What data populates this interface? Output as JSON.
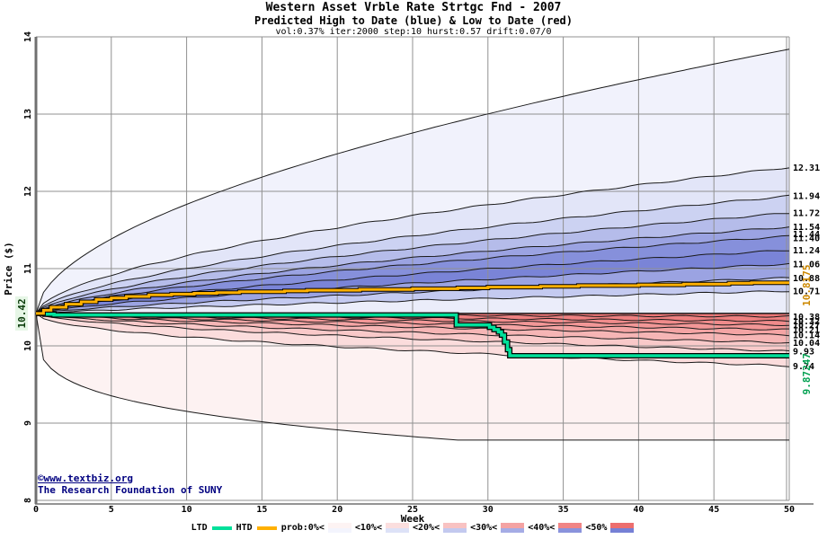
{
  "header": {
    "title": "Western Asset Vrble Rate Strtgc Fnd - 2007",
    "subtitle": "Predicted High to Date (blue) &  Low to Date (red)",
    "params": "vol:0.37% iter:2000 step:10 hurst:0.57 drift:0.07/0"
  },
  "watermark": {
    "line1": "©www.textbiz.org",
    "line2": "The Research Foundation of SUNY",
    "color": "#000080"
  },
  "chart_data": {
    "type": "area",
    "title": "Western Asset Vrble Rate Strtgc Fnd - 2007",
    "subtitle": "Predicted High to Date (blue) &  Low to Date (red)",
    "params_note": "vol:0.37% iter:2000 step:10 hurst:0.57 drift:0.07/0",
    "xlabel": "Week",
    "ylabel": "Price ($)",
    "xlim": [
      0,
      50
    ],
    "ylim": [
      8,
      14
    ],
    "xticks": [
      0,
      5,
      10,
      15,
      20,
      25,
      30,
      35,
      40,
      45,
      50
    ],
    "yticks": [
      8,
      9,
      10,
      11,
      12,
      13,
      14
    ],
    "grid": true,
    "start_week": 0,
    "start_price": 10.42,
    "start_label": "10.42",
    "htd_final_value": 10.8175,
    "htd_final_label": "10.8175",
    "ltd_final_value": 9.87247,
    "ltd_final_label": "9.87247",
    "upper_boundaries": [
      {
        "end": 13.84,
        "k": 0.55,
        "label": ""
      },
      {
        "end": 12.31,
        "k": 0.58,
        "label": "12.31"
      },
      {
        "end": 11.94,
        "k": 0.6,
        "label": "11.94"
      },
      {
        "end": 11.72,
        "k": 0.62,
        "label": "11.72"
      },
      {
        "end": 11.54,
        "k": 0.64,
        "label": "11.54"
      },
      {
        "end": 11.42,
        "k": 0.66,
        "label": "11.44",
        "label2": "11.40"
      },
      {
        "end": 11.24,
        "k": 0.69,
        "label": "11.24"
      },
      {
        "end": 11.06,
        "k": 0.72,
        "label": "11.06"
      },
      {
        "end": 10.88,
        "k": 0.76,
        "label": "10.88"
      },
      {
        "end": 10.71,
        "k": 0.8,
        "label": "10.71"
      }
    ],
    "upper_fills": [
      "#f1f2fc",
      "#e2e5f8",
      "#ccd2f2",
      "#b5bcea",
      "#9ba3e2",
      "#8690db",
      "#7a84d7",
      "#9ba3e2",
      "#c4caf0",
      "#ebedfa"
    ],
    "lower_boundaries": [
      {
        "end": 10.38,
        "k": 0.8,
        "label": "10.38"
      },
      {
        "end": 10.32,
        "k": 0.76,
        "label": "10.32"
      },
      {
        "end": 10.27,
        "k": 0.72,
        "label": "10.27"
      },
      {
        "end": 10.21,
        "k": 0.69,
        "label": "10.21"
      },
      {
        "end": 10.14,
        "k": 0.66,
        "label": "10.14"
      },
      {
        "end": 10.04,
        "k": 0.62,
        "label": "10.04"
      },
      {
        "end": 9.93,
        "k": 0.58,
        "label": "9.93"
      },
      {
        "end": 9.74,
        "k": 0.5,
        "label": "9.74"
      },
      {
        "end": 8.78,
        "k": 0.25,
        "label": "",
        "flat_after": 28
      }
    ],
    "lower_fills": [
      "#ec7575",
      "#ee8080",
      "#f08b8b",
      "#f29797",
      "#f4a4a4",
      "#f6b5b5",
      "#f9c9c9",
      "#fbdcdc",
      "#fdf2f2"
    ],
    "htd_steps": [
      [
        0,
        10.42
      ],
      [
        0.5,
        10.46
      ],
      [
        1,
        10.5
      ],
      [
        2,
        10.54
      ],
      [
        3,
        10.57
      ],
      [
        4,
        10.6
      ],
      [
        5,
        10.62
      ],
      [
        6,
        10.64
      ],
      [
        7.5,
        10.66
      ],
      [
        9,
        10.67
      ],
      [
        10.5,
        10.68
      ],
      [
        12,
        10.69
      ],
      [
        13.5,
        10.7
      ],
      [
        16.5,
        10.71
      ],
      [
        18,
        10.72
      ],
      [
        21.5,
        10.73
      ],
      [
        25,
        10.74
      ],
      [
        28,
        10.75
      ],
      [
        30,
        10.76
      ],
      [
        33.5,
        10.77
      ],
      [
        36,
        10.78
      ],
      [
        40,
        10.79
      ],
      [
        43,
        10.8
      ],
      [
        46,
        10.81
      ],
      [
        47.5,
        10.8175
      ],
      [
        50,
        10.8175
      ]
    ],
    "ltd_steps": [
      [
        0,
        10.42
      ],
      [
        0.6,
        10.41
      ],
      [
        1.2,
        10.4
      ],
      [
        27.9,
        10.4
      ],
      [
        27.9,
        10.27
      ],
      [
        29.8,
        10.27
      ],
      [
        30.1,
        10.24
      ],
      [
        30.4,
        10.21
      ],
      [
        30.7,
        10.18
      ],
      [
        30.9,
        10.14
      ],
      [
        31.1,
        10.05
      ],
      [
        31.3,
        9.95
      ],
      [
        31.45,
        9.87247
      ],
      [
        50,
        9.87247
      ]
    ],
    "colors": {
      "ltd_line": "#00e09a",
      "htd_line": "#ffb000",
      "htd_label": "#cc8800",
      "ltd_label": "#00a050",
      "start_label_text": "#0b3d0b",
      "start_label_bg": "#e6f6e6",
      "grid": "#909090",
      "axis": "#707070",
      "boundary_line": "#1a1a1a"
    },
    "legend": {
      "ltd_label": "LTD",
      "htd_label": "HTD",
      "bands": [
        {
          "label": "prob:0%<",
          "red": "#fdf3f3",
          "blue": "#f3f4fd"
        },
        {
          "label": "<10%<",
          "red": "#fbdede",
          "blue": "#dde2f7"
        },
        {
          "label": "<20%<",
          "red": "#f8c2c2",
          "blue": "#c3c9ef"
        },
        {
          "label": "<30%<",
          "red": "#f4a3a3",
          "blue": "#a5ace5"
        },
        {
          "label": "<40%<",
          "red": "#f18585",
          "blue": "#8a93dc"
        },
        {
          "label": "<50%",
          "red": "#ed6e6e",
          "blue": "#7680d5"
        }
      ]
    }
  }
}
